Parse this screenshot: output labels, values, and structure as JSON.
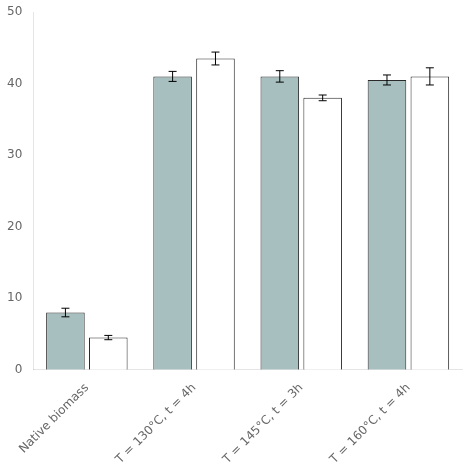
{
  "chart_data": {
    "type": "bar",
    "categories": [
      "Native biomass",
      "T = 130°C, t = 4h",
      "T = 145°C, t = 3h",
      "T = 160°C, t = 4h"
    ],
    "series": [
      {
        "color": "#a8bfc0",
        "values": [
          8.0,
          41.0,
          41.0,
          40.5
        ],
        "errors": [
          0.6,
          0.7,
          0.8,
          0.7
        ]
      },
      {
        "color": "#ffffff",
        "values": [
          4.5,
          43.5,
          38.0,
          41.0
        ],
        "errors": [
          0.3,
          0.9,
          0.4,
          1.2
        ]
      }
    ],
    "ylim": [
      0,
      50
    ],
    "yticks": [
      0,
      10,
      20,
      30,
      40,
      50
    ],
    "grid": false
  }
}
